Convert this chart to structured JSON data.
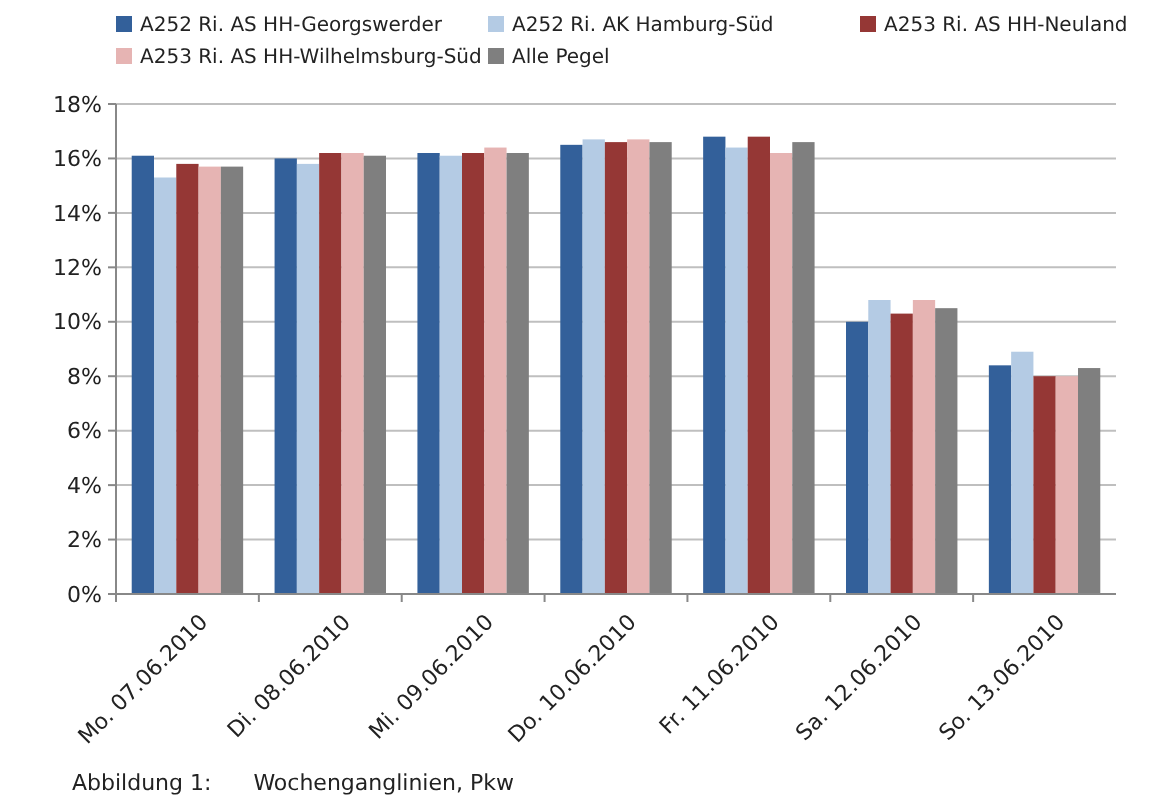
{
  "chart_data": {
    "type": "bar",
    "categories": [
      "Mo. 07.06.2010",
      "Di. 08.06.2010",
      "Mi. 09.06.2010",
      "Do. 10.06.2010",
      "Fr. 11.06.2010",
      "Sa. 12.06.2010",
      "So. 13.06.2010"
    ],
    "series": [
      {
        "name": "A252 Ri. AS HH-Georgswerder",
        "color": "#33609a",
        "values": [
          16.1,
          16.0,
          16.2,
          16.5,
          16.8,
          10.0,
          8.4
        ]
      },
      {
        "name": "A252 Ri. AK Hamburg-Süd",
        "color": "#b4cbe4",
        "values": [
          15.3,
          15.8,
          16.1,
          16.7,
          16.4,
          10.8,
          8.9
        ]
      },
      {
        "name": "A253 Ri. AS HH-Neuland",
        "color": "#953735",
        "values": [
          15.8,
          16.2,
          16.2,
          16.6,
          16.8,
          10.3,
          8.0
        ]
      },
      {
        "name": "A253 Ri. AS HH-Wilhelmsburg-Süd",
        "color": "#e6b4b3",
        "values": [
          15.7,
          16.2,
          16.4,
          16.7,
          16.2,
          10.8,
          8.0
        ]
      },
      {
        "name": "Alle Pegel",
        "color": "#7f7f7f",
        "values": [
          15.7,
          16.1,
          16.2,
          16.6,
          16.6,
          10.5,
          8.3
        ]
      }
    ],
    "ylim": [
      0,
      18
    ],
    "yticks": [
      {
        "value": 0,
        "label": "0%"
      },
      {
        "value": 2,
        "label": "2%"
      },
      {
        "value": 4,
        "label": "4%"
      },
      {
        "value": 6,
        "label": "6%"
      },
      {
        "value": 8,
        "label": "8%"
      },
      {
        "value": 10,
        "label": "10%"
      },
      {
        "value": 12,
        "label": "12%"
      },
      {
        "value": 14,
        "label": "14%"
      },
      {
        "value": 16,
        "label": "16%"
      },
      {
        "value": 18,
        "label": "18%"
      }
    ],
    "grid": "y",
    "legend": "top",
    "annotations": [
      "Abbildung 1:      Wochenganglinien, Pkw"
    ]
  }
}
